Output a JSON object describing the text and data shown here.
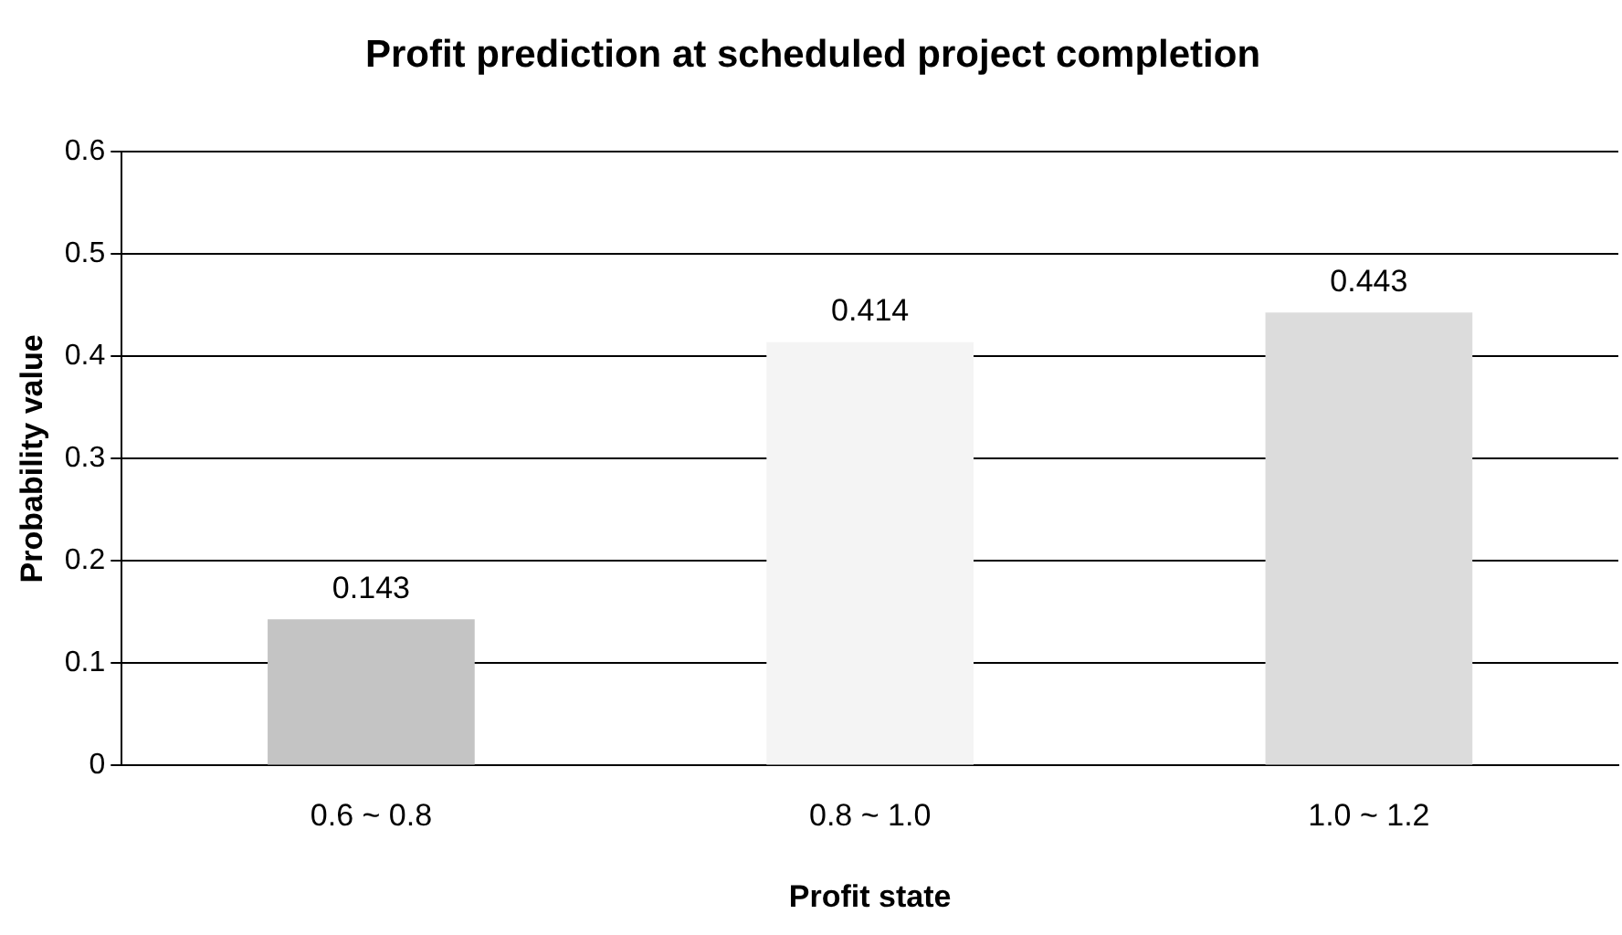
{
  "chart_data": {
    "type": "bar",
    "title": "Profit prediction at scheduled project completion",
    "xlabel": "Profit state",
    "ylabel": "Probability value",
    "categories": [
      "0.6 ~ 0.8",
      "0.8 ~ 1.0",
      "1.0 ~ 1.2"
    ],
    "values": [
      0.143,
      0.414,
      0.443
    ],
    "colors": [
      "#c4c4c4",
      "#f4f4f4",
      "#dcdcdc"
    ],
    "ylim": [
      0,
      0.6
    ],
    "yticks": [
      0,
      0.1,
      0.2,
      0.3,
      0.4,
      0.5,
      0.6
    ],
    "grid": "y",
    "data_labels": true,
    "legend": false
  }
}
